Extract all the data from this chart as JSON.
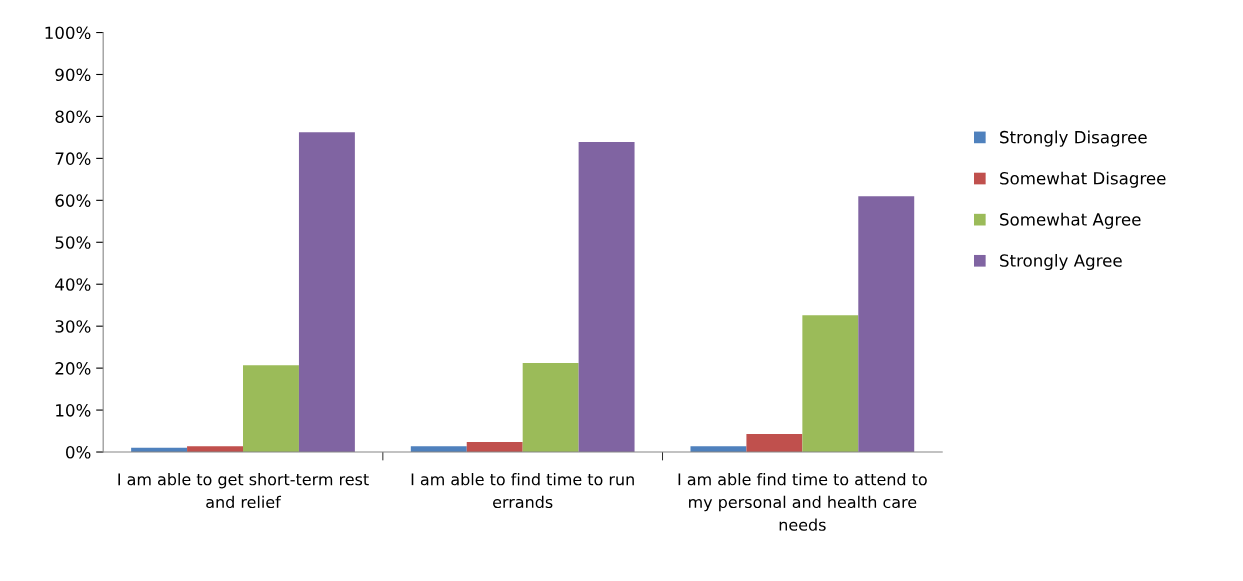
{
  "chart_data": {
    "type": "bar",
    "categories": [
      "I am able to get short-term rest and relief",
      "I am able to find time to run errands",
      "I am able find time to attend to my personal and health care needs"
    ],
    "series": [
      {
        "name": "Strongly Disagree",
        "color": "#4f81bd",
        "values": [
          1.0,
          1.4,
          1.4
        ]
      },
      {
        "name": "Somewhat Disagree",
        "color": "#c0504d",
        "values": [
          1.4,
          2.4,
          4.3
        ]
      },
      {
        "name": "Somewhat Agree",
        "color": "#9bbb59",
        "values": [
          20.7,
          21.2,
          32.6
        ]
      },
      {
        "name": "Strongly Agree",
        "color": "#8064a2",
        "values": [
          76.2,
          73.9,
          61.0
        ]
      }
    ],
    "ylim": [
      0,
      100
    ],
    "yticks": [
      {
        "value": 0,
        "label": "0%"
      },
      {
        "value": 10,
        "label": "10%"
      },
      {
        "value": 20,
        "label": "20%"
      },
      {
        "value": 30,
        "label": "30%"
      },
      {
        "value": 40,
        "label": "40%"
      },
      {
        "value": 50,
        "label": "50%"
      },
      {
        "value": 60,
        "label": "60%"
      },
      {
        "value": 70,
        "label": "70%"
      },
      {
        "value": 80,
        "label": "80%"
      },
      {
        "value": 90,
        "label": "90%"
      },
      {
        "value": 100,
        "label": "100%"
      }
    ],
    "grid": false,
    "legend": "right"
  }
}
